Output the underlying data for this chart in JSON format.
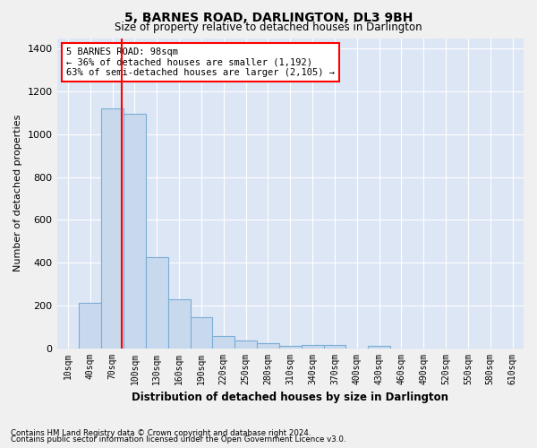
{
  "title": "5, BARNES ROAD, DARLINGTON, DL3 9BH",
  "subtitle": "Size of property relative to detached houses in Darlington",
  "xlabel": "Distribution of detached houses by size in Darlington",
  "ylabel": "Number of detached properties",
  "bar_color": "#c8d9ee",
  "bar_edge_color": "#7aadd4",
  "background_color": "#dce6f5",
  "fig_color": "#f0f0f0",
  "grid_color": "#ffffff",
  "categories": [
    "10sqm",
    "40sqm",
    "70sqm",
    "100sqm",
    "130sqm",
    "160sqm",
    "190sqm",
    "220sqm",
    "250sqm",
    "280sqm",
    "310sqm",
    "340sqm",
    "370sqm",
    "400sqm",
    "430sqm",
    "460sqm",
    "490sqm",
    "520sqm",
    "550sqm",
    "580sqm",
    "610sqm"
  ],
  "values": [
    0,
    210,
    1120,
    1095,
    425,
    230,
    145,
    55,
    37,
    23,
    10,
    14,
    15,
    0,
    10,
    0,
    0,
    0,
    0,
    0,
    0
  ],
  "ylim": [
    0,
    1450
  ],
  "yticks": [
    0,
    200,
    400,
    600,
    800,
    1000,
    1200,
    1400
  ],
  "property_line_x": 98,
  "property_line_label": "5 BARNES ROAD: 98sqm",
  "annotation_line1": "← 36% of detached houses are smaller (1,192)",
  "annotation_line2": "63% of semi-detached houses are larger (2,105) →",
  "footnote1": "Contains HM Land Registry data © Crown copyright and database right 2024.",
  "footnote2": "Contains public sector information licensed under the Open Government Licence v3.0.",
  "bin_width": 30
}
